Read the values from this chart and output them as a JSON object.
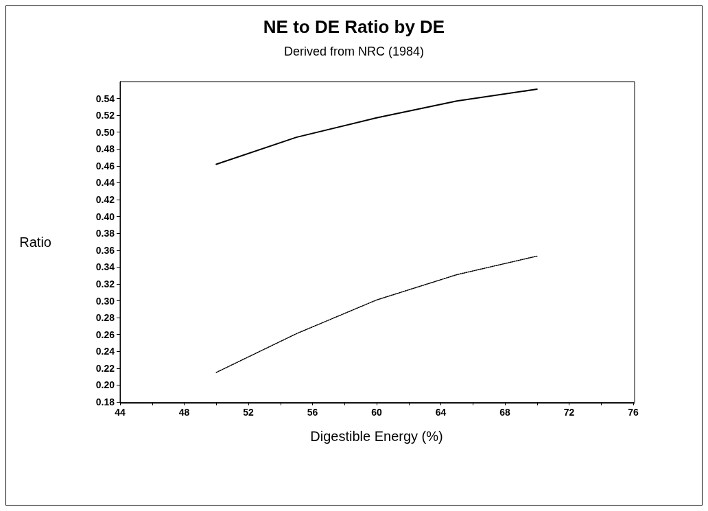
{
  "chart_data": {
    "type": "line",
    "title": "NE to DE Ratio by DE",
    "subtitle": "Derived from NRC (1984)",
    "xlabel": "Digestible Energy (%)",
    "ylabel": "Ratio",
    "x": [
      50,
      55,
      60,
      65,
      70
    ],
    "series": [
      {
        "color": "#000000",
        "line_style": "solid",
        "values": [
          0.462,
          0.494,
          0.517,
          0.537,
          0.551
        ]
      },
      {
        "color": "#000000",
        "line_style": "dotted",
        "values": [
          0.215,
          0.261,
          0.301,
          0.331,
          0.353
        ]
      }
    ],
    "xlim": [
      44,
      76
    ],
    "xticks": [
      44,
      {
        "value": 46,
        "label": null
      },
      48,
      {
        "value": 50,
        "label": null
      },
      52,
      {
        "value": 54,
        "label": null
      },
      56,
      {
        "value": 58,
        "label": null
      },
      60,
      {
        "value": 62,
        "label": null
      },
      64,
      {
        "value": 66,
        "label": null
      },
      68,
      {
        "value": 70,
        "label": null
      },
      72,
      {
        "value": 74,
        "label": null
      },
      76
    ],
    "ylim": [
      0.18,
      0.56
    ],
    "yticks": [
      0.18,
      {
        "value": 0.2,
        "label": "0.20"
      },
      0.22,
      0.24,
      0.26,
      0.28,
      {
        "value": 0.3,
        "label": "0.30"
      },
      0.32,
      0.34,
      0.36,
      0.38,
      {
        "value": 0.4,
        "label": "0.40"
      },
      0.42,
      0.44,
      0.46,
      0.48,
      {
        "value": 0.5,
        "label": "0.50"
      },
      0.52,
      0.54
    ],
    "grid": false,
    "marker": "none"
  }
}
